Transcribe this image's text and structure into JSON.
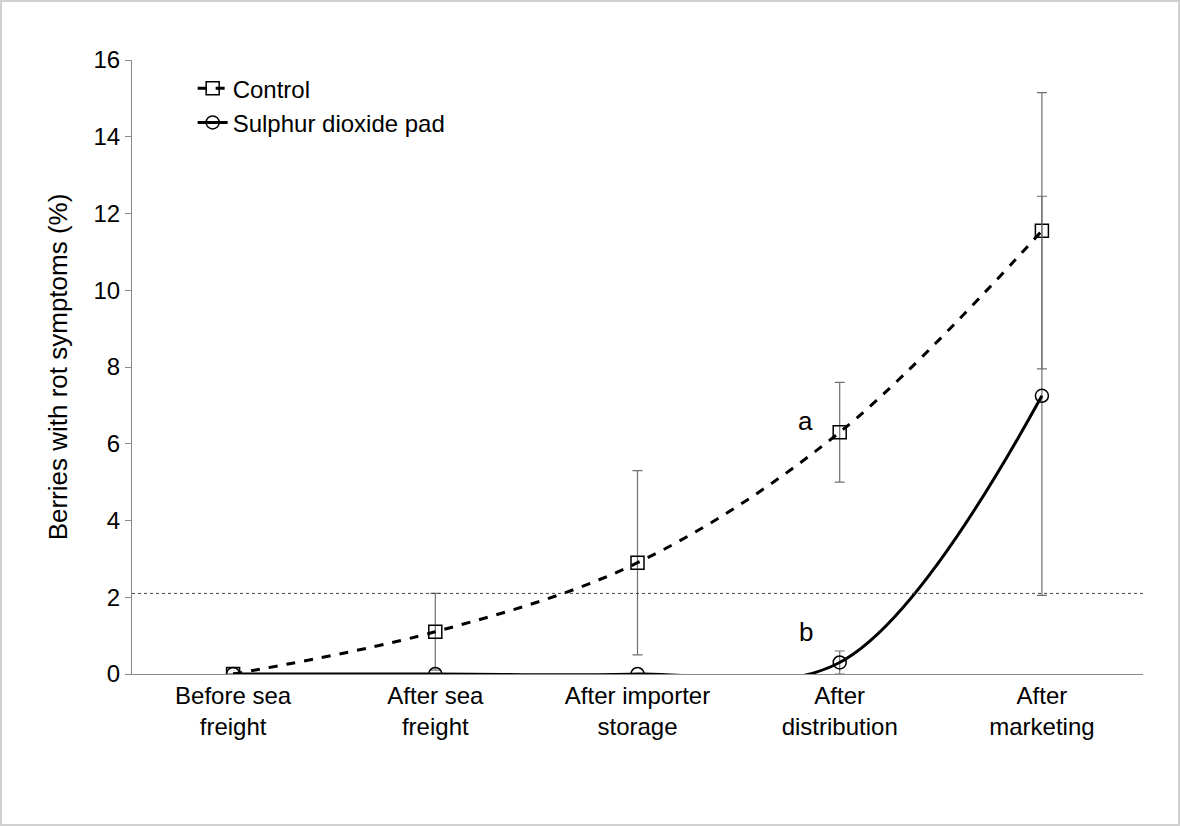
{
  "chart_data": {
    "type": "line",
    "y_label": "Berries with rot symptoms (%)",
    "categories": [
      "Before sea freight",
      "After sea freight",
      "After importer storage",
      "After distribution",
      "After marketing"
    ],
    "series": [
      {
        "name": "Control",
        "color": "#000000",
        "line_style": "dash",
        "marker": "square-open",
        "values": [
          0,
          1.1,
          2.9,
          6.3,
          11.55
        ],
        "error": [
          0,
          1.0,
          2.4,
          1.3,
          3.6
        ]
      },
      {
        "name": "Sulphur dioxide pad",
        "color": "#000000",
        "line_style": "solid",
        "marker": "circle-open",
        "values": [
          0,
          0,
          0,
          0.3,
          7.25
        ],
        "error": [
          0,
          0,
          0,
          0.3,
          5.2
        ]
      }
    ],
    "threshold": 2.1,
    "annotations": [
      {
        "text": "a",
        "category": "After distribution",
        "y": 6.6
      },
      {
        "text": "b",
        "category": "After distribution",
        "y": 1.1
      }
    ],
    "ylim": [
      0,
      16
    ],
    "yticks": [
      0,
      2,
      4,
      6,
      8,
      10,
      12,
      14,
      16
    ],
    "grid": false,
    "legend": "top left"
  }
}
